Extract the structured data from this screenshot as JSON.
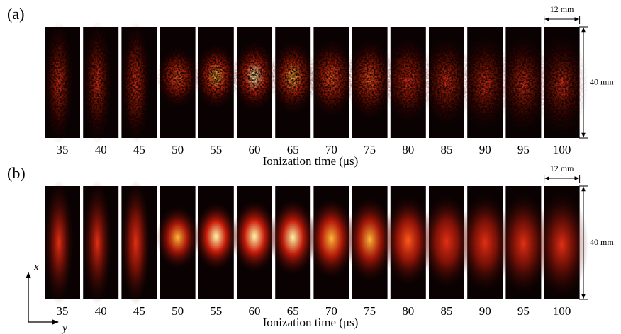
{
  "panels": [
    {
      "label": "(a)",
      "times": [
        35,
        40,
        45,
        50,
        55,
        60,
        65,
        70,
        75,
        80,
        85,
        90,
        95,
        100
      ],
      "x_label": "Ionization time (μs)",
      "scale_width": "12 mm",
      "scale_height": "40 mm"
    },
    {
      "label": "(b)",
      "times": [
        35,
        40,
        45,
        50,
        55,
        60,
        65,
        70,
        75,
        80,
        85,
        90,
        95,
        100
      ],
      "x_label": "Ionization time (μs)",
      "scale_width": "12 mm",
      "scale_height": "40 mm"
    }
  ],
  "axes": {
    "vertical": "x",
    "horizontal": "y"
  }
}
